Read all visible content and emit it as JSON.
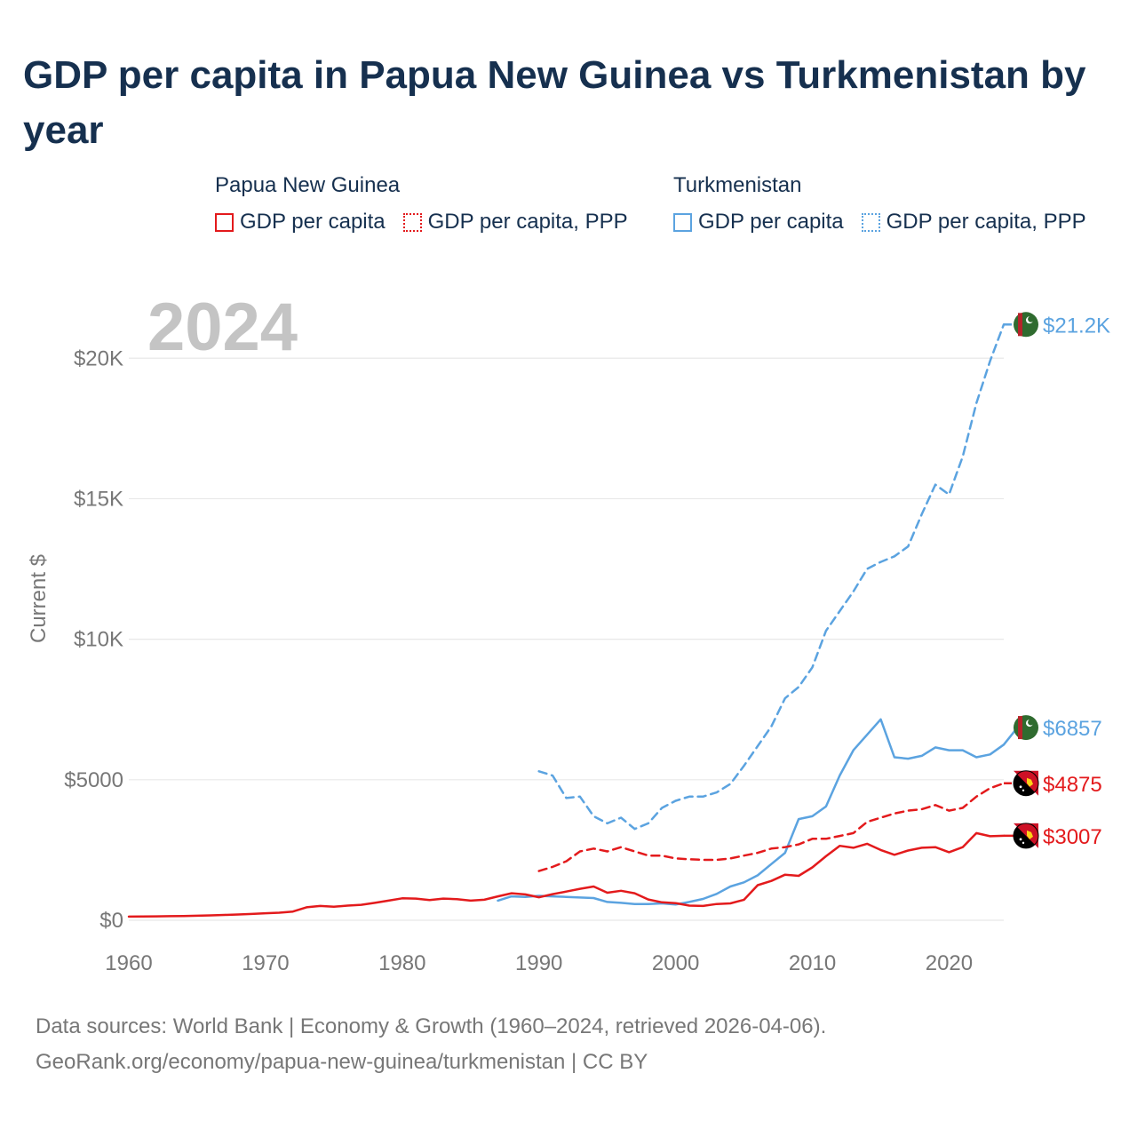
{
  "title": "GDP per capita in Papua New Guinea vs Turkmenistan by year",
  "legend": {
    "groups": [
      {
        "name": "Papua New Guinea",
        "color": "#e31a1c",
        "items": [
          {
            "label": "GDP per capita",
            "style": "solid"
          },
          {
            "label": "GDP per capita, PPP",
            "style": "dotted"
          }
        ]
      },
      {
        "name": "Turkmenistan",
        "color": "#5ba3e0",
        "items": [
          {
            "label": "GDP per capita",
            "style": "solid"
          },
          {
            "label": "GDP per capita, PPP",
            "style": "dotted"
          }
        ]
      }
    ]
  },
  "year_label": "2024",
  "footer": {
    "line1": "Data sources: World Bank | Economy & Growth (1960–2024, retrieved 2026-04-06).",
    "line2": "GeoRank.org/economy/papua-new-guinea/turkmenistan | CC BY"
  },
  "chart_data": {
    "type": "line",
    "title": "GDP per capita in Papua New Guinea vs Turkmenistan by year",
    "xlabel": "",
    "ylabel": "Current $",
    "xlim": [
      1960,
      2024
    ],
    "ylim": [
      0,
      22000
    ],
    "grid": true,
    "x_ticks": [
      1960,
      1970,
      1980,
      1990,
      2000,
      2010,
      2020
    ],
    "x_tick_labels": [
      "1960",
      "1970",
      "1980",
      "1990",
      "2000",
      "2010",
      "2020"
    ],
    "y_ticks": [
      0,
      5000,
      10000,
      15000,
      20000
    ],
    "y_tick_labels": [
      "$0",
      "$5000",
      "$10K",
      "$15K",
      "$20K"
    ],
    "series": [
      {
        "name": "Turkmenistan GDP per capita, PPP",
        "country": "Turkmenistan",
        "color": "#5ba3e0",
        "dash": "dashed",
        "end_label": "$21.2K",
        "start_year": 1990,
        "values": [
          5300,
          5150,
          4350,
          4400,
          3700,
          3450,
          3650,
          3250,
          3450,
          4000,
          4250,
          4400,
          4400,
          4550,
          4850,
          5500,
          6200,
          6900,
          7900,
          8300,
          9000,
          10300,
          11000,
          11700,
          12500,
          12750,
          12950,
          13300,
          14450,
          15500,
          15150,
          16500,
          18400,
          19900,
          21200
        ]
      },
      {
        "name": "Turkmenistan GDP per capita",
        "country": "Turkmenistan",
        "color": "#5ba3e0",
        "dash": "solid",
        "end_label": "$6857",
        "start_year": 1987,
        "values": [
          700,
          850,
          830,
          870,
          850,
          830,
          810,
          790,
          650,
          620,
          580,
          580,
          600,
          560,
          650,
          760,
          940,
          1200,
          1350,
          1600,
          2000,
          2400,
          3600,
          3700,
          4050,
          5150,
          6050,
          6600,
          7150,
          5800,
          5750,
          5850,
          6150,
          6050,
          6050,
          5800,
          5900,
          6250,
          6857
        ]
      },
      {
        "name": "Papua New Guinea GDP per capita, PPP",
        "country": "Papua New Guinea",
        "color": "#e31a1c",
        "dash": "dashed",
        "end_label": "$4875",
        "start_year": 1990,
        "values": [
          1750,
          1900,
          2100,
          2450,
          2550,
          2450,
          2600,
          2450,
          2300,
          2300,
          2200,
          2170,
          2150,
          2150,
          2200,
          2300,
          2400,
          2550,
          2600,
          2700,
          2900,
          2900,
          3000,
          3100,
          3500,
          3650,
          3800,
          3900,
          3950,
          4100,
          3900,
          4000,
          4400,
          4700,
          4875
        ]
      },
      {
        "name": "Papua New Guinea GDP per capita",
        "country": "Papua New Guinea",
        "color": "#e31a1c",
        "dash": "solid",
        "end_label": "$3007",
        "start_year": 1960,
        "values": [
          130,
          135,
          140,
          145,
          150,
          160,
          175,
          190,
          205,
          225,
          250,
          270,
          310,
          460,
          510,
          480,
          520,
          550,
          620,
          700,
          780,
          770,
          720,
          770,
          750,
          700,
          730,
          850,
          960,
          920,
          820,
          930,
          1020,
          1120,
          1200,
          980,
          1050,
          960,
          740,
          640,
          610,
          520,
          510,
          580,
          600,
          730,
          1250,
          1400,
          1620,
          1580,
          1880,
          2280,
          2650,
          2580,
          2720,
          2500,
          2330,
          2480,
          2580,
          2600,
          2420,
          2600,
          3100,
          2990,
          3007
        ]
      }
    ]
  }
}
